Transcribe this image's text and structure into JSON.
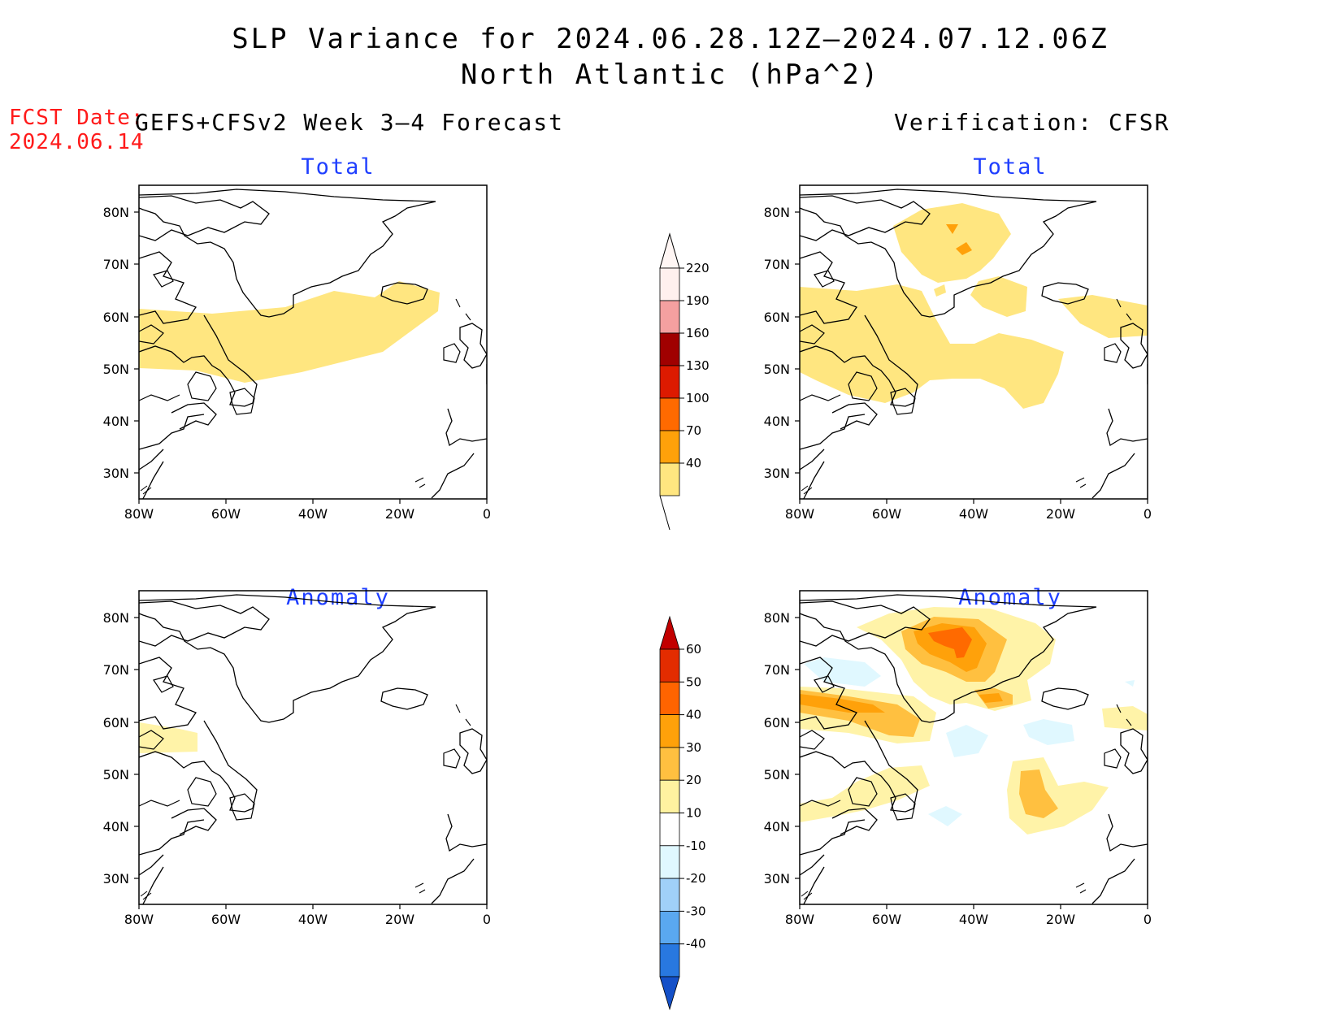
{
  "title": {
    "line1": "SLP Variance for 2024.06.28.12Z–2024.07.12.06Z",
    "line2": "North Atlantic (hPa^2)"
  },
  "fcst_date": {
    "label": "FCST Date:",
    "value": "2024.06.14"
  },
  "columns": {
    "left": "GEFS+CFSv2 Week 3–4 Forecast",
    "right": "Verification: CFSR"
  },
  "panels": {
    "forecast_total": "Total",
    "forecast_anomaly": "Anomaly",
    "verification_total": "Total",
    "verification_anomaly": "Anomaly"
  },
  "axes": {
    "lat_ticks": [
      "80N",
      "70N",
      "60N",
      "50N",
      "40N",
      "30N"
    ],
    "lon_ticks": [
      "80W",
      "60W",
      "40W",
      "20W",
      "0"
    ]
  },
  "colorbars": {
    "total": {
      "levels": [
        "220",
        "190",
        "160",
        "130",
        "100",
        "70",
        "40"
      ],
      "colors": [
        "#fff0ee",
        "#f4a0a0",
        "#a00000",
        "#dd1a00",
        "#ff6a00",
        "#ffa10a",
        "#ffe680"
      ]
    },
    "anomaly": {
      "levels": [
        "60",
        "50",
        "40",
        "30",
        "20",
        "10",
        "-10",
        "-20",
        "-30",
        "-40"
      ],
      "colors": [
        "#c20000",
        "#e32c00",
        "#ff6400",
        "#ffa10a",
        "#ffc040",
        "#fff2a0",
        "#ffffff",
        "#e0f8ff",
        "#a0d0f8",
        "#5aa8f0",
        "#2878e0",
        "#1450c8"
      ]
    }
  },
  "fill_colors": {
    "light_yellow": "#ffe680",
    "pale_yellow": "#fff3a8",
    "orange_light": "#ffc040",
    "orange": "#ffa10a",
    "dark_orange": "#ff6a00",
    "light_cyan": "#e0f8ff"
  }
}
